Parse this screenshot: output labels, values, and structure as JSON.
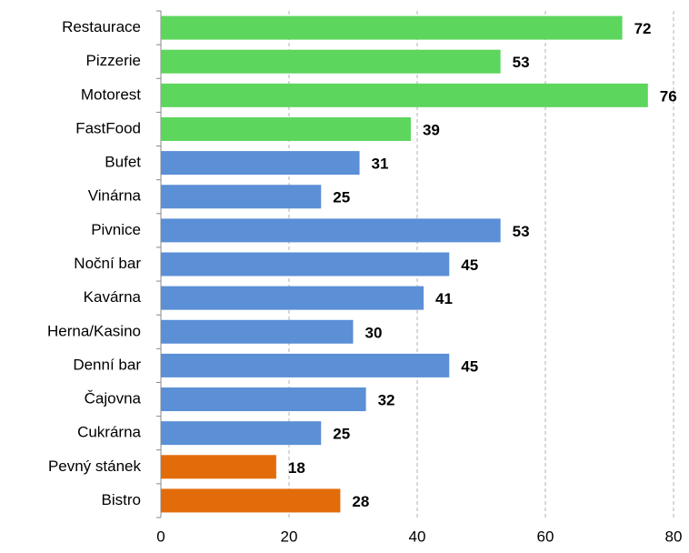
{
  "chart_data": {
    "type": "bar",
    "orientation": "horizontal",
    "categories": [
      "Restaurace",
      "Pizzerie",
      "Motorest",
      "FastFood",
      "Bufet",
      "Vinárna",
      "Pivnice",
      "Noční bar",
      "Kavárna",
      "Herna/Kasino",
      "Denní bar",
      "Čajovna",
      "Cukrárna",
      "Pevný stánek",
      "Bistro"
    ],
    "values": [
      72,
      53,
      76,
      39,
      31,
      25,
      53,
      45,
      41,
      30,
      45,
      32,
      25,
      18,
      28
    ],
    "colors": [
      "#5cd65c",
      "#5cd65c",
      "#5cd65c",
      "#5cd65c",
      "#5b8fd6",
      "#5b8fd6",
      "#5b8fd6",
      "#5b8fd6",
      "#5b8fd6",
      "#5b8fd6",
      "#5b8fd6",
      "#5b8fd6",
      "#5b8fd6",
      "#e36c0a",
      "#e36c0a"
    ],
    "xlim": [
      0,
      80
    ],
    "xticks": [
      0,
      20,
      40,
      60,
      80
    ],
    "grid": true
  }
}
